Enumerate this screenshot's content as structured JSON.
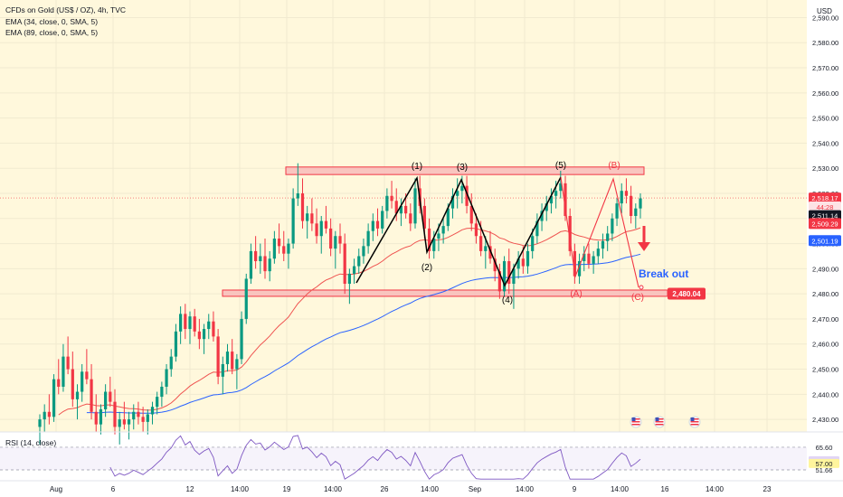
{
  "header": {
    "title": "CFDs on Gold (US$ / OZ), 4h, TVC",
    "ema1": "EMA (34, close, 0, SMA, 5)",
    "ema2": "EMA (89, close, 0, SMA, 5)",
    "currency": "USD"
  },
  "rsi_header": "RSI (14, close)",
  "colors": {
    "background": "#fff8dc",
    "up": "#089981",
    "down": "#f23645",
    "ema34": "#ef5350",
    "ema89": "#2962ff",
    "zone_fill": "#f8b8b8",
    "zone_stroke": "#f23645",
    "rsi": "#7e57c2",
    "wave_black": "#000000",
    "wave_red": "#f23645"
  },
  "price_axis": {
    "labels": [
      "2,590.00",
      "2,580.00",
      "2,570.00",
      "2,560.00",
      "2,550.00",
      "2,540.00",
      "2,530.00",
      "2,520.00",
      "2,510.00",
      "2,500.00",
      "2,490.00",
      "2,480.00",
      "2,470.00",
      "2,460.00",
      "2,450.00",
      "2,440.00",
      "2,430.00"
    ],
    "tags": [
      {
        "text": "2,518.17",
        "bg": "#f23645",
        "fg": "#ffffff",
        "price": 2518.17
      },
      {
        "text": "44:28",
        "bg": "#fde3e5",
        "fg": "#f23645",
        "price": 2514.6
      },
      {
        "text": "2,511.14",
        "bg": "#131722",
        "fg": "#ffffff",
        "price": 2511.14
      },
      {
        "text": "2,509.29",
        "bg": "#f23645",
        "fg": "#ffffff",
        "price": 2508.0
      },
      {
        "text": "2,501.19",
        "bg": "#2962ff",
        "fg": "#ffffff",
        "price": 2501.19
      }
    ]
  },
  "rsi_axis": [
    {
      "text": "65.60",
      "bg": "",
      "fg": "#131722",
      "v": 65.6
    },
    {
      "text": "57.29",
      "bg": "#e1d5f5",
      "fg": "#131722",
      "v": 57.29
    },
    {
      "text": "57.00",
      "bg": "#fff59d",
      "fg": "#131722",
      "v": 55.6
    },
    {
      "text": "51.66",
      "bg": "",
      "fg": "#131722",
      "v": 51.66
    }
  ],
  "time_axis": [
    "Aug",
    "6",
    "12",
    "14:00",
    "19",
    "14:00",
    "26",
    "14:00",
    "Sep",
    "14:00",
    "9",
    "14:00",
    "16",
    "14:00",
    "23"
  ],
  "annotations": {
    "wave_labels": [
      "(1)",
      "(2)",
      "(3)",
      "(4)",
      "(5)"
    ],
    "corrective_labels": [
      "(A)",
      "(B)",
      "(C)"
    ],
    "breakout_text": "Break out",
    "breakout_price": "2,480.04"
  },
  "chart_data": {
    "type": "candlestick",
    "title": "CFDs on Gold (US$ / OZ), 4h, TVC",
    "ylim": [
      2425,
      2597
    ],
    "support_zone": [
      2479.0,
      2481.5
    ],
    "resistance_zone": [
      2527.5,
      2530.5
    ],
    "last_price": 2518.17,
    "breakout_level": 2480.04,
    "ema34_last": 2509.29,
    "ema89_last": 2501.19,
    "ohlc": [
      [
        2427,
        2432,
        2420,
        2430
      ],
      [
        2430,
        2436,
        2425,
        2433
      ],
      [
        2433,
        2440,
        2428,
        2431
      ],
      [
        2431,
        2448,
        2429,
        2446
      ],
      [
        2446,
        2454,
        2440,
        2443
      ],
      [
        2443,
        2460,
        2441,
        2455
      ],
      [
        2455,
        2463,
        2448,
        2450
      ],
      [
        2450,
        2457,
        2435,
        2438
      ],
      [
        2438,
        2444,
        2430,
        2441
      ],
      [
        2441,
        2452,
        2437,
        2449
      ],
      [
        2449,
        2458,
        2444,
        2446
      ],
      [
        2446,
        2452,
        2430,
        2433
      ],
      [
        2433,
        2440,
        2425,
        2428
      ],
      [
        2428,
        2436,
        2424,
        2434
      ],
      [
        2434,
        2444,
        2431,
        2441
      ],
      [
        2441,
        2447,
        2435,
        2437
      ],
      [
        2437,
        2442,
        2424,
        2427
      ],
      [
        2427,
        2433,
        2420,
        2430
      ],
      [
        2430,
        2437,
        2426,
        2428
      ],
      [
        2428,
        2433,
        2422,
        2430
      ],
      [
        2430,
        2436,
        2426,
        2433
      ],
      [
        2433,
        2437,
        2428,
        2431
      ],
      [
        2431,
        2435,
        2425,
        2429
      ],
      [
        2429,
        2434,
        2424,
        2432
      ],
      [
        2432,
        2437,
        2428,
        2435
      ],
      [
        2435,
        2441,
        2432,
        2439
      ],
      [
        2439,
        2445,
        2435,
        2443
      ],
      [
        2443,
        2452,
        2440,
        2450
      ],
      [
        2450,
        2458,
        2447,
        2455
      ],
      [
        2455,
        2468,
        2453,
        2465
      ],
      [
        2465,
        2475,
        2460,
        2472
      ],
      [
        2472,
        2476,
        2462,
        2466
      ],
      [
        2466,
        2473,
        2460,
        2471
      ],
      [
        2471,
        2474,
        2463,
        2465
      ],
      [
        2465,
        2470,
        2458,
        2462
      ],
      [
        2462,
        2468,
        2456,
        2466
      ],
      [
        2466,
        2472,
        2462,
        2469
      ],
      [
        2469,
        2473,
        2461,
        2463
      ],
      [
        2463,
        2466,
        2444,
        2447
      ],
      [
        2447,
        2455,
        2440,
        2452
      ],
      [
        2452,
        2460,
        2449,
        2457
      ],
      [
        2457,
        2462,
        2448,
        2450
      ],
      [
        2450,
        2456,
        2442,
        2454
      ],
      [
        2454,
        2473,
        2452,
        2470
      ],
      [
        2470,
        2488,
        2468,
        2486
      ],
      [
        2486,
        2500,
        2484,
        2497
      ],
      [
        2497,
        2503,
        2490,
        2493
      ],
      [
        2493,
        2500,
        2488,
        2495
      ],
      [
        2495,
        2502,
        2486,
        2489
      ],
      [
        2489,
        2497,
        2485,
        2494
      ],
      [
        2494,
        2505,
        2492,
        2502
      ],
      [
        2502,
        2508,
        2496,
        2499
      ],
      [
        2499,
        2505,
        2493,
        2496
      ],
      [
        2496,
        2502,
        2490,
        2500
      ],
      [
        2500,
        2522,
        2498,
        2518
      ],
      [
        2518,
        2532,
        2515,
        2520
      ],
      [
        2520,
        2526,
        2506,
        2509
      ],
      [
        2509,
        2515,
        2502,
        2512
      ],
      [
        2512,
        2518,
        2505,
        2508
      ],
      [
        2508,
        2514,
        2500,
        2503
      ],
      [
        2503,
        2511,
        2496,
        2509
      ],
      [
        2509,
        2515,
        2504,
        2506
      ],
      [
        2506,
        2510,
        2495,
        2498
      ],
      [
        2498,
        2505,
        2490,
        2503
      ],
      [
        2503,
        2508,
        2496,
        2500
      ],
      [
        2500,
        2504,
        2480,
        2484
      ],
      [
        2484,
        2490,
        2476,
        2488
      ],
      [
        2488,
        2494,
        2484,
        2491
      ],
      [
        2491,
        2498,
        2488,
        2495
      ],
      [
        2495,
        2502,
        2492,
        2499
      ],
      [
        2499,
        2508,
        2496,
        2505
      ],
      [
        2505,
        2512,
        2501,
        2509
      ],
      [
        2509,
        2514,
        2503,
        2506
      ],
      [
        2506,
        2515,
        2504,
        2513
      ],
      [
        2513,
        2522,
        2510,
        2519
      ],
      [
        2519,
        2525,
        2514,
        2517
      ],
      [
        2517,
        2522,
        2509,
        2512
      ],
      [
        2512,
        2518,
        2507,
        2515
      ],
      [
        2515,
        2520,
        2510,
        2512
      ],
      [
        2512,
        2516,
        2505,
        2508
      ],
      [
        2508,
        2526,
        2506,
        2522
      ],
      [
        2522,
        2527,
        2512,
        2515
      ],
      [
        2515,
        2518,
        2502,
        2506
      ],
      [
        2506,
        2510,
        2494,
        2497
      ],
      [
        2497,
        2505,
        2494,
        2502
      ],
      [
        2502,
        2508,
        2497,
        2504
      ],
      [
        2504,
        2510,
        2500,
        2507
      ],
      [
        2507,
        2516,
        2505,
        2514
      ],
      [
        2514,
        2522,
        2510,
        2519
      ],
      [
        2519,
        2526,
        2514,
        2521
      ],
      [
        2521,
        2527,
        2516,
        2523
      ],
      [
        2523,
        2527,
        2512,
        2515
      ],
      [
        2515,
        2520,
        2505,
        2508
      ],
      [
        2508,
        2512,
        2500,
        2503
      ],
      [
        2503,
        2509,
        2495,
        2497
      ],
      [
        2497,
        2503,
        2490,
        2499
      ],
      [
        2499,
        2505,
        2492,
        2494
      ],
      [
        2494,
        2498,
        2485,
        2489
      ],
      [
        2489,
        2492,
        2478,
        2481
      ],
      [
        2481,
        2495,
        2479,
        2493
      ],
      [
        2493,
        2498,
        2480,
        2484
      ],
      [
        2484,
        2492,
        2474,
        2490
      ],
      [
        2490,
        2497,
        2486,
        2494
      ],
      [
        2494,
        2499,
        2488,
        2491
      ],
      [
        2491,
        2500,
        2488,
        2497
      ],
      [
        2497,
        2506,
        2494,
        2503
      ],
      [
        2503,
        2512,
        2500,
        2509
      ],
      [
        2509,
        2516,
        2505,
        2513
      ],
      [
        2513,
        2519,
        2509,
        2516
      ],
      [
        2516,
        2522,
        2512,
        2519
      ],
      [
        2519,
        2525,
        2514,
        2521
      ],
      [
        2521,
        2529,
        2518,
        2524
      ],
      [
        2524,
        2527,
        2509,
        2511
      ],
      [
        2511,
        2514,
        2495,
        2497
      ],
      [
        2497,
        2500,
        2484,
        2487
      ],
      [
        2487,
        2496,
        2484,
        2493
      ],
      [
        2493,
        2499,
        2489,
        2496
      ],
      [
        2496,
        2500,
        2490,
        2492
      ],
      [
        2492,
        2497,
        2488,
        2495
      ],
      [
        2495,
        2501,
        2492,
        2498
      ],
      [
        2498,
        2504,
        2494,
        2501
      ],
      [
        2501,
        2507,
        2497,
        2504
      ],
      [
        2504,
        2512,
        2501,
        2510
      ],
      [
        2510,
        2518,
        2507,
        2516
      ],
      [
        2516,
        2524,
        2512,
        2521
      ],
      [
        2521,
        2526,
        2516,
        2519
      ],
      [
        2519,
        2523,
        2508,
        2511
      ],
      [
        2511,
        2516,
        2506,
        2514
      ],
      [
        2514,
        2520,
        2510,
        2518
      ]
    ],
    "rsi_levels": [
      65.6,
      51.66
    ]
  }
}
